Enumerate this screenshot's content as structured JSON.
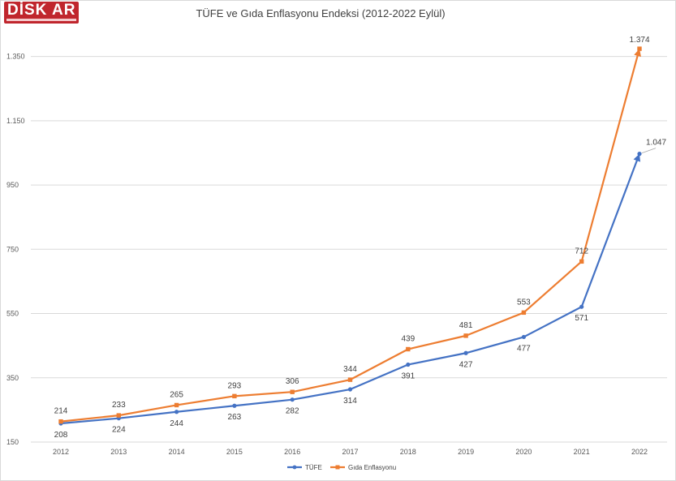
{
  "logo": {
    "text": "DİSK AR"
  },
  "chart_data": {
    "type": "line",
    "title": "TÜFE ve Gıda Enflasyonu Endeksi (2012-2022 Eylül)",
    "xlabel": "",
    "ylabel": "",
    "categories": [
      "2012",
      "2013",
      "2014",
      "2015",
      "2016",
      "2017",
      "2018",
      "2019",
      "2020",
      "2021",
      "2022"
    ],
    "ylim": [
      150,
      1450
    ],
    "yticks": [
      150,
      350,
      550,
      750,
      950,
      1150,
      1350
    ],
    "ytick_labels": [
      "150",
      "350",
      "550",
      "750",
      "950",
      "1.150",
      "1.350"
    ],
    "grid": true,
    "legend_position": "bottom",
    "series": [
      {
        "name": "TÜFE",
        "color": "#4472c4",
        "marker": "circle",
        "values": [
          208,
          224,
          244,
          263,
          282,
          314,
          391,
          427,
          477,
          571,
          1047
        ],
        "labels": [
          "208",
          "224",
          "244",
          "263",
          "282",
          "314",
          "391",
          "427",
          "477",
          "571",
          "1.047"
        ]
      },
      {
        "name": "Gıda Enflasyonu",
        "color": "#ed7d31",
        "marker": "square",
        "values": [
          214,
          233,
          265,
          293,
          306,
          344,
          439,
          481,
          553,
          712,
          1374
        ],
        "labels": [
          "214",
          "233",
          "265",
          "293",
          "306",
          "344",
          "439",
          "481",
          "553",
          "712",
          "1.374"
        ]
      }
    ]
  }
}
